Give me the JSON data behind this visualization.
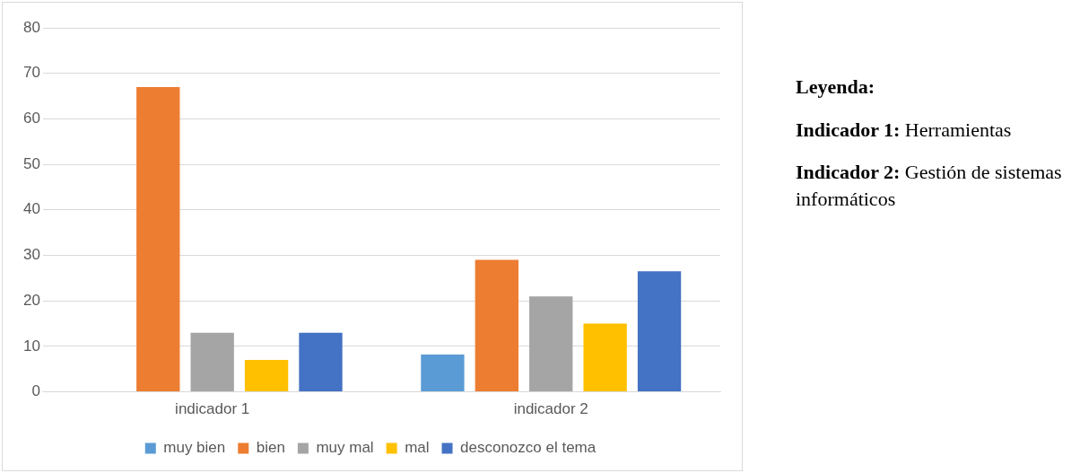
{
  "chart_data": {
    "type": "bar",
    "categories": [
      "indicador 1",
      "indicador 2"
    ],
    "series": [
      {
        "name": "muy bien",
        "color": "#5b9bd5",
        "values": [
          0,
          8.2
        ]
      },
      {
        "name": "bien",
        "color": "#ed7d31",
        "values": [
          67,
          29
        ]
      },
      {
        "name": "muy mal",
        "color": "#a5a5a5",
        "values": [
          13,
          21
        ]
      },
      {
        "name": "mal",
        "color": "#ffc000",
        "values": [
          7,
          15
        ]
      },
      {
        "name": "desconozco el tema",
        "color": "#4472c4",
        "values": [
          13,
          26.5
        ]
      }
    ],
    "ylim": [
      0,
      80
    ],
    "yticks": [
      0,
      10,
      20,
      30,
      40,
      50,
      60,
      70,
      80
    ],
    "grid": "y",
    "legend": "bottom",
    "annotations": [
      "Leyenda:",
      "Indicador 1: Herramientas",
      "Indicador 2: Gestión de sistemas informáticos"
    ]
  }
}
